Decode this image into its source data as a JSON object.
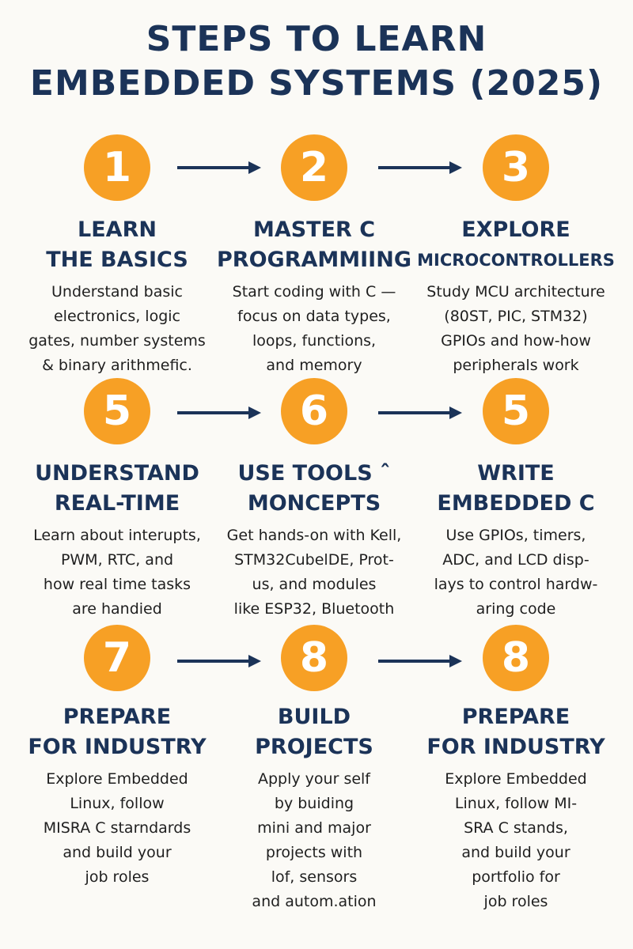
{
  "title": {
    "line1": "STEPS TO LEARN",
    "line2": "EMBEDDED SYSTEMS (2025)"
  },
  "steps": [
    {
      "number": "1",
      "heading": [
        "LEARN",
        "THE BASICS"
      ],
      "desc": [
        "Understand basic",
        "electronics, logic",
        "gates, number systems",
        "& binary arithmefic."
      ]
    },
    {
      "number": "2",
      "heading": [
        "MASTER C",
        "PROGRAMMIING"
      ],
      "desc": [
        "Start coding with C —",
        "focus on data types,",
        "loops, functions,",
        "and memory"
      ]
    },
    {
      "number": "3",
      "heading": [
        "EXPLORE",
        "MICROCONTROLLERS"
      ],
      "desc": [
        "Study MCU architecture",
        "(80ST, PIC, STM32)",
        "GPIOs and how-how",
        "peripherals work"
      ]
    },
    {
      "number": "5",
      "heading": [
        "UNDERSTAND",
        "REAL-TIME"
      ],
      "desc": [
        "Learn about interupts,",
        "PWM, RTC, and",
        "how real time tasks",
        "are handied"
      ]
    },
    {
      "number": "6",
      "heading": [
        "USE TOOLS ˆ",
        "MONCEPTS"
      ],
      "desc": [
        "Get hands-on with Kell,",
        "STM32CubelDE, Prot-",
        "us, and modules",
        "like ESP32, Bluetooth"
      ]
    },
    {
      "number": "5",
      "heading": [
        "WRITE",
        "EMBEDDED C"
      ],
      "desc": [
        "Use GPIOs, timers,",
        "ADC, and LCD disp-",
        "lays to control hardw-",
        "aring code"
      ]
    },
    {
      "number": "7",
      "heading": [
        "PREPARE",
        "FOR INDUSTRY"
      ],
      "desc": [
        "Explore Embedded",
        "Linux, follow",
        "MISRA C starndards",
        "and build your",
        "job roles"
      ]
    },
    {
      "number": "8",
      "heading": [
        "BUILD",
        "PROJECTS"
      ],
      "desc": [
        "Apply your self",
        "by buiding",
        "mini and major",
        "projects with",
        "lof, sensors",
        "and autom.ation"
      ]
    },
    {
      "number": "8",
      "heading": [
        "PREPARE",
        "FOR INDUSTRY"
      ],
      "desc": [
        "Explore Embedded",
        "Linux,  follow MI-",
        "SRA C stands,",
        "and build your",
        "portfolio for",
        "job roles"
      ]
    }
  ],
  "colors": {
    "accent": "#f7a025",
    "heading": "#1b3358",
    "text": "#1f1f1f",
    "background": "#fbfaf6"
  }
}
